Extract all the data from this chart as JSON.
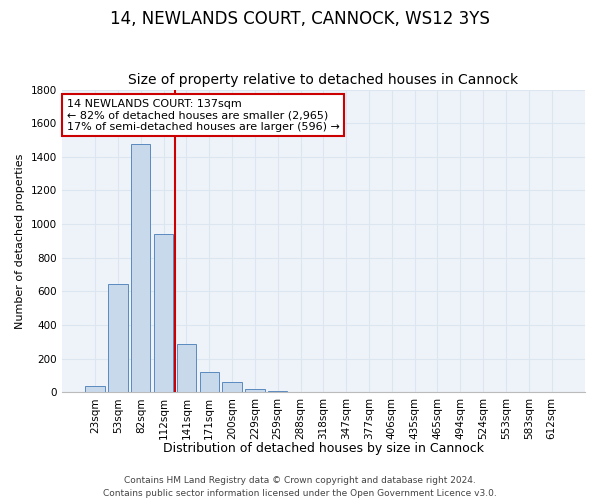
{
  "title_line1": "14, NEWLANDS COURT, CANNOCK, WS12 3YS",
  "title_line2": "Size of property relative to detached houses in Cannock",
  "xlabel": "Distribution of detached houses by size in Cannock",
  "ylabel": "Number of detached properties",
  "categories": [
    "23sqm",
    "53sqm",
    "82sqm",
    "112sqm",
    "141sqm",
    "171sqm",
    "200sqm",
    "229sqm",
    "259sqm",
    "288sqm",
    "318sqm",
    "347sqm",
    "377sqm",
    "406sqm",
    "435sqm",
    "465sqm",
    "494sqm",
    "524sqm",
    "553sqm",
    "583sqm",
    "612sqm"
  ],
  "values": [
    35,
    645,
    1475,
    940,
    285,
    120,
    60,
    20,
    5,
    2,
    1,
    0,
    0,
    0,
    0,
    0,
    0,
    0,
    0,
    0,
    0
  ],
  "bar_color": "#c9d9ec",
  "bar_edge_color": "#5a8abf",
  "vline_color": "#cc0000",
  "vline_xindex": 3.5,
  "annotation_text": "14 NEWLANDS COURT: 137sqm\n← 82% of detached houses are smaller (2,965)\n17% of semi-detached houses are larger (596) →",
  "annotation_box_color": "#cc0000",
  "ylim": [
    0,
    1800
  ],
  "yticks": [
    0,
    200,
    400,
    600,
    800,
    1000,
    1200,
    1400,
    1600,
    1800
  ],
  "grid_color": "#dce6f1",
  "background_color": "#eef3f9",
  "footer_line1": "Contains HM Land Registry data © Crown copyright and database right 2024.",
  "footer_line2": "Contains public sector information licensed under the Open Government Licence v3.0.",
  "title_fontsize": 12,
  "subtitle_fontsize": 10,
  "xlabel_fontsize": 9,
  "ylabel_fontsize": 8,
  "tick_fontsize": 7.5,
  "annotation_fontsize": 8,
  "footer_fontsize": 6.5
}
